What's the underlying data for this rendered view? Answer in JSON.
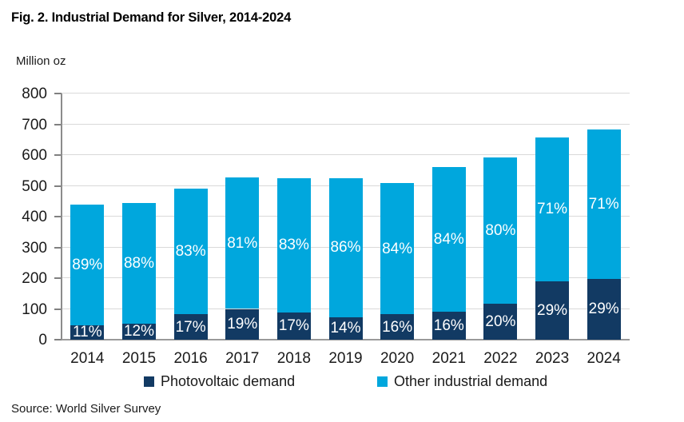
{
  "title": "Fig. 2. Industrial Demand for Silver, 2014-2024",
  "y_axis_unit": "Million oz",
  "source": "Source: World Silver Survey",
  "colors": {
    "photovoltaic": "#123A63",
    "other_industrial": "#00A7DD",
    "gridline": "#D9D9D9",
    "axis": "#8C8C8C",
    "label_text": "#FFFFFF"
  },
  "legend": {
    "items": [
      {
        "label": "Photovoltaic demand",
        "color": "#123A63"
      },
      {
        "label": "Other industrial demand",
        "color": "#00A7DD"
      }
    ]
  },
  "chart_data": {
    "type": "bar",
    "stacked": true,
    "title": "Fig. 2. Industrial Demand for Silver, 2014-2024",
    "ylabel": "Million oz",
    "ylim": [
      0,
      800
    ],
    "yticks": [
      0,
      100,
      200,
      300,
      400,
      500,
      600,
      700,
      800
    ],
    "grid": true,
    "legend_position": "bottom",
    "categories": [
      "2014",
      "2015",
      "2016",
      "2017",
      "2018",
      "2019",
      "2020",
      "2021",
      "2022",
      "2023",
      "2024"
    ],
    "series": [
      {
        "name": "Photovoltaic demand",
        "color": "#123A63",
        "values": [
          48,
          53,
          83,
          100,
          89,
          73,
          82,
          90,
          118,
          190,
          198
        ],
        "percent_labels": [
          "11%",
          "12%",
          "17%",
          "19%",
          "17%",
          "14%",
          "16%",
          "16%",
          "20%",
          "29%",
          "29%"
        ]
      },
      {
        "name": "Other industrial demand",
        "color": "#00A7DD",
        "values": [
          392,
          391,
          407,
          427,
          436,
          452,
          428,
          472,
          474,
          467,
          484
        ],
        "percent_labels": [
          "89%",
          "88%",
          "83%",
          "81%",
          "83%",
          "86%",
          "84%",
          "84%",
          "80%",
          "71%",
          "71%"
        ]
      }
    ],
    "totals": [
      440,
      444,
      490,
      527,
      525,
      525,
      510,
      562,
      592,
      657,
      682
    ]
  }
}
